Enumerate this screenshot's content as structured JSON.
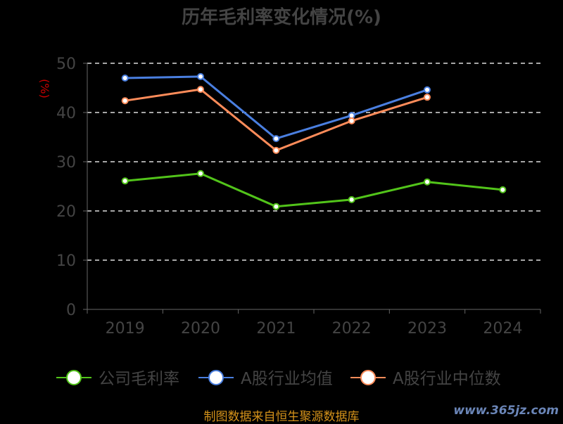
{
  "chart_data": {
    "type": "line",
    "title": "历年毛利率变化情况(%)",
    "ylabel": "(%)",
    "xlabel": "",
    "ylim": [
      0,
      50
    ],
    "yticks": [
      0,
      10,
      20,
      30,
      40,
      50
    ],
    "grid": true,
    "legend_position": "bottom",
    "categories": [
      "2019",
      "2020",
      "2021",
      "2022",
      "2023",
      "2024"
    ],
    "series": [
      {
        "name": "公司毛利率",
        "color": "#52c41a",
        "values": [
          26.1,
          27.6,
          20.9,
          22.3,
          25.9,
          24.3
        ]
      },
      {
        "name": "A股行业均值",
        "color": "#4a7fe0",
        "values": [
          47.0,
          47.3,
          34.7,
          39.4,
          44.6,
          null
        ]
      },
      {
        "name": "A股行业中位数",
        "color": "#ff8c5a",
        "values": [
          42.4,
          44.7,
          32.3,
          38.3,
          43.1,
          null
        ]
      }
    ]
  },
  "footer": {
    "source": "制图数据来自恒生聚源数据库",
    "watermark": "www.365jz.com"
  }
}
